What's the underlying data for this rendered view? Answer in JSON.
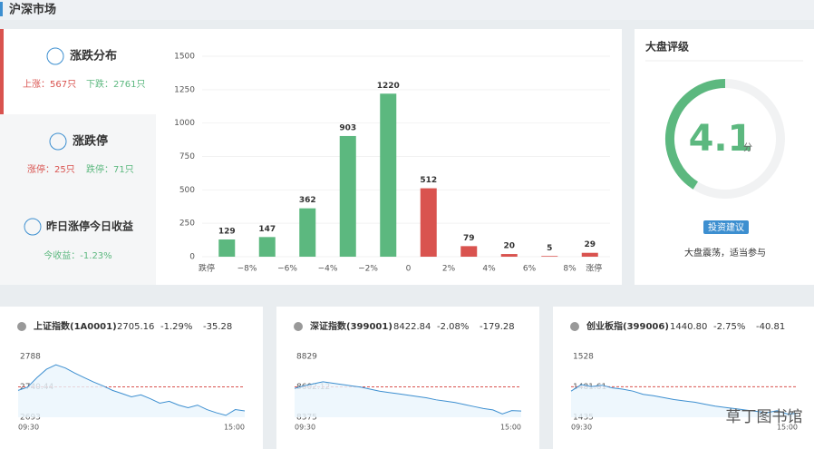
{
  "header": {
    "title": "沪深市场"
  },
  "summary": {
    "distribution": {
      "title": "涨跌分布",
      "up": "上涨：567只",
      "down": "下跌：2761只"
    },
    "limit": {
      "title": "涨跌停",
      "up": "涨停：25只",
      "down": "跌停：71只"
    },
    "yesterday": {
      "title": "昨日涨停今日收益",
      "income": "今收益：-1.23%"
    }
  },
  "rating": {
    "title": "大盘评级",
    "value": 4.1,
    "unit": "分",
    "lim": [
      0,
      10
    ],
    "color": "#5cb87f",
    "button": "投资建议",
    "advice": "大盘震荡，适当参与"
  },
  "watermark": "草丁图书馆",
  "chart_data": [
    {
      "type": "bar",
      "categories": [
        null,
        null,
        null,
        null,
        null,
        null,
        null,
        null,
        null,
        null
      ],
      "boundary_labels": [
        "跌停",
        "−8%",
        "−6%",
        "−4%",
        "−2%",
        "0",
        "2%",
        "4%",
        "6%",
        "8%",
        "涨停"
      ],
      "values": [
        129,
        147,
        362,
        903,
        1220,
        512,
        79,
        20,
        5,
        29
      ],
      "colors": [
        "#5cb87f",
        "#5cb87f",
        "#5cb87f",
        "#5cb87f",
        "#5cb87f",
        "#d9534f",
        "#d9534f",
        "#d9534f",
        "#d9534f",
        "#d9534f"
      ],
      "ylim": [
        0,
        1500
      ],
      "yticks": [
        0,
        250,
        500,
        750,
        1000,
        1250,
        1500
      ],
      "grid": true
    },
    {
      "type": "line",
      "title": "上证指数(1A0001)",
      "quote": [
        "2705.16",
        "-1.29%",
        "-35.28"
      ],
      "x_labels": [
        "09:30",
        "15:00"
      ],
      "ylim": [
        2693,
        2788
      ],
      "yticks": [
        2693,
        2740.44,
        2788
      ],
      "series": [
        {
          "color": "#3d8fd0",
          "values": [
            2735,
            2740,
            2755,
            2768,
            2775,
            2770,
            2762,
            2755,
            2748,
            2742,
            2735,
            2730,
            2725,
            2728,
            2722,
            2715,
            2718,
            2712,
            2708,
            2712,
            2705,
            2700,
            2696,
            2705,
            2703
          ]
        }
      ]
    },
    {
      "type": "line",
      "title": "深证指数(399001)",
      "quote": [
        "8422.84",
        "-2.08%",
        "-179.28"
      ],
      "x_labels": [
        "09:30",
        "15:00"
      ],
      "ylim": [
        8375,
        8829
      ],
      "yticks": [
        8375,
        8602.12,
        8829
      ],
      "series": [
        {
          "color": "#3d8fd0",
          "values": [
            8590,
            8610,
            8625,
            8640,
            8630,
            8620,
            8610,
            8600,
            8585,
            8570,
            8560,
            8550,
            8540,
            8530,
            8520,
            8505,
            8495,
            8485,
            8470,
            8455,
            8440,
            8430,
            8400,
            8425,
            8422
          ]
        }
      ]
    },
    {
      "type": "line",
      "title": "创业板指(399006)",
      "quote": [
        "1440.80",
        "-2.75%",
        "-40.81"
      ],
      "x_labels": [
        "09:30",
        "15:00"
      ],
      "ylim": [
        1435,
        1528
      ],
      "yticks": [
        1435,
        1481.61,
        1528
      ],
      "series": [
        {
          "color": "#3d8fd0",
          "values": [
            1475,
            1485,
            1482,
            1484,
            1480,
            1478,
            1475,
            1470,
            1468,
            1465,
            1462,
            1460,
            1458,
            1455,
            1452,
            1450,
            1448,
            1446,
            1444,
            1442,
            1445,
            1440,
            1441
          ]
        }
      ]
    }
  ]
}
